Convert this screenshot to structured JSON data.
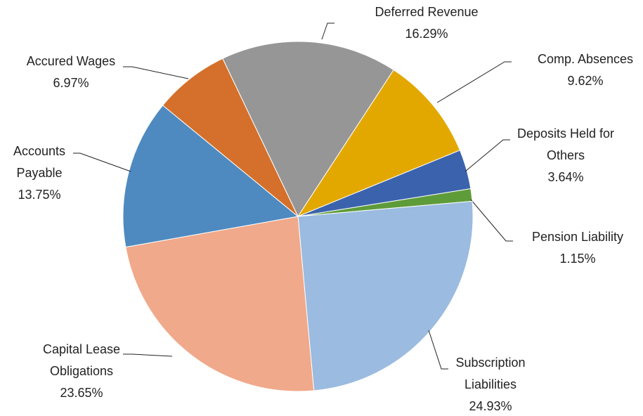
{
  "chart_data": {
    "type": "pie",
    "categories": [
      "Deferred Revenue",
      "Comp. Absences",
      "Deposits Held for Others",
      "Pension Liability",
      "Subscription Liabilities",
      "Capital Lease Obligations",
      "Accounts Payable",
      "Accured Wages"
    ],
    "values": [
      16.29,
      9.62,
      3.64,
      1.15,
      24.93,
      23.65,
      13.75,
      6.97
    ],
    "value_labels": [
      "16.29%",
      "9.62%",
      "3.64%",
      "1.15%",
      "24.93%",
      "23.65%",
      "13.75%",
      "6.97%"
    ],
    "colors": [
      "#969696",
      "#e3a800",
      "#3b63ad",
      "#5e9c3a",
      "#9bbbe0",
      "#f0a98a",
      "#4e8ac0",
      "#d4702b"
    ]
  }
}
